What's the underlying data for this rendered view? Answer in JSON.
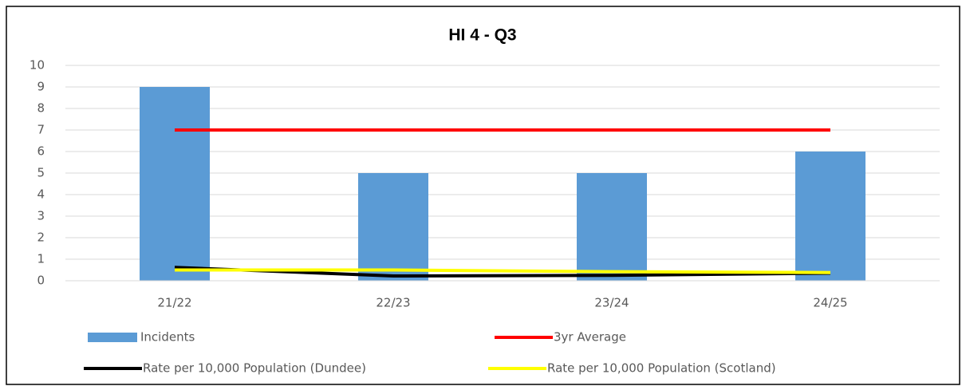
{
  "chart_data": {
    "type": "bar",
    "title": "HI 4 - Q3",
    "categories": [
      "21/22",
      "22/23",
      "23/24",
      "24/25"
    ],
    "series": [
      {
        "name": "Incidents",
        "type": "bar",
        "color": "#5b9bd5",
        "values": [
          9,
          5,
          5,
          6
        ]
      },
      {
        "name": "3yr Average",
        "type": "line",
        "color": "#ff0000",
        "values": [
          7,
          7,
          7,
          7
        ]
      },
      {
        "name": "Rate per 10,000 Population (Dundee)",
        "type": "line",
        "color": "#000000",
        "values": [
          0.62,
          0.22,
          0.25,
          0.35
        ]
      },
      {
        "name": "Rate per 10,000 Population (Scotland)",
        "type": "line",
        "color": "#ffff00",
        "values": [
          0.5,
          0.5,
          0.42,
          0.38
        ]
      }
    ],
    "ylim": [
      0,
      10
    ],
    "yticks": [
      0,
      1,
      2,
      3,
      4,
      5,
      6,
      7,
      8,
      9,
      10
    ],
    "grid": true
  }
}
